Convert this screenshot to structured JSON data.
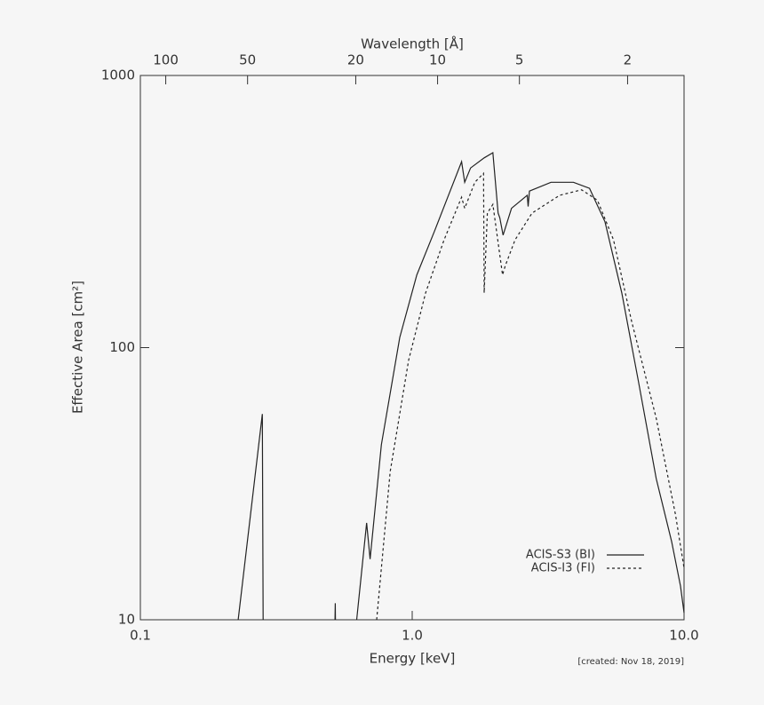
{
  "chart_data": {
    "type": "line",
    "xlabel": "Energy [keV]",
    "ylabel": "Effective Area [cm²]",
    "x2label": "Wavelength [Å]",
    "annotation": "[created: Nov 18, 2019]",
    "xlim": [
      0.1,
      10
    ],
    "ylim": [
      10,
      1000
    ],
    "log_x": true,
    "log_y": true,
    "xticks": [
      0.1,
      {
        "value": 1,
        "label": "1.0"
      },
      {
        "value": 10,
        "label": "10.0"
      }
    ],
    "yticks": [
      10,
      100,
      1000
    ],
    "x2lim": [
      123.98,
      1.2398
    ],
    "x2ticks": [
      100,
      50,
      20,
      10,
      5,
      2
    ],
    "legend": "lower right",
    "series": [
      {
        "name": "ACIS-S3 (BI)",
        "color": "#222222",
        "dash": "solid",
        "x": [
          0.229,
          0.281,
          0.283,
          null,
          0.52,
          0.521,
          0.522,
          null,
          0.625,
          0.68,
          0.7,
          0.77,
          0.9,
          1.04,
          1.21,
          1.52,
          1.56,
          1.64,
          1.84,
          1.98,
          2.07,
          2.1,
          2.16,
          2.32,
          2.65,
          2.67,
          2.7,
          3.24,
          3.92,
          4.49,
          5.12,
          5.9,
          6.8,
          7.9,
          9.0,
          9.7,
          10
        ],
        "values": [
          10,
          57,
          10,
          null,
          10,
          11.5,
          10,
          null,
          10,
          22.7,
          16.7,
          44,
          109,
          185,
          269,
          482,
          405,
          457,
          498,
          520,
          312,
          300,
          259,
          325,
          363,
          330,
          376,
          405,
          405,
          385,
          290,
          159,
          75,
          33,
          19.4,
          13.3,
          10.6
        ]
      },
      {
        "name": "ACIS-I3 (FI)",
        "color": "#222222",
        "dash": "dashed",
        "x": [
          0.74,
          0.83,
          0.97,
          1.12,
          1.31,
          1.52,
          1.56,
          1.7,
          1.83,
          1.84,
          1.89,
          1.98,
          2.15,
          2.2,
          2.39,
          2.76,
          3.49,
          4.2,
          4.8,
          5.5,
          6.4,
          7.9,
          9.3,
          10
        ],
        "values": [
          10,
          35,
          90,
          159,
          249,
          357,
          325,
          405,
          437,
          159,
          312,
          336,
          185,
          200,
          249,
          312,
          363,
          380,
          348,
          249,
          126,
          55,
          24.3,
          15.5
        ]
      }
    ]
  }
}
